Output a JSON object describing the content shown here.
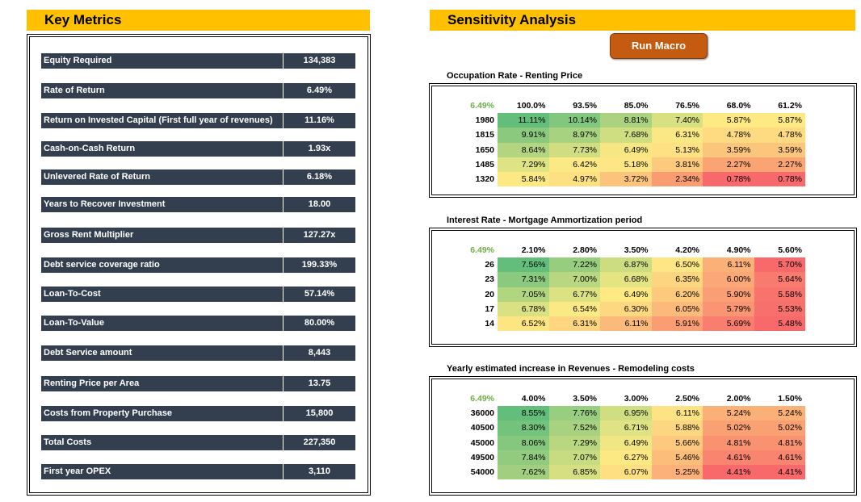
{
  "key_metrics": {
    "title": "Key Metrics",
    "rows": [
      {
        "label": "Equity Required",
        "value": "134,383"
      },
      {
        "label": "Rate of Return",
        "value": "6.49%"
      },
      {
        "label": "Return on Invested Capital (First full year of revenues)",
        "value": "11.16%"
      },
      {
        "label": "Cash-on-Cash Return",
        "value": "1.93x"
      },
      {
        "label": "Unlevered Rate of Return",
        "value": "6.18%"
      },
      {
        "label": "Years to Recover Investment",
        "value": "18.00"
      },
      {
        "label": "Gross Rent Multiplier",
        "value": "127.27x"
      },
      {
        "label": "Debt service coverage ratio",
        "value": "199.33%"
      },
      {
        "label": "Loan-To-Cost",
        "value": "57.14%"
      },
      {
        "label": "Loan-To-Value",
        "value": "80.00%"
      },
      {
        "label": "Debt Service amount",
        "value": "8,443"
      },
      {
        "label": "Renting Price per Area",
        "value": "13.75"
      },
      {
        "label": "Costs from Property Purchase",
        "value": "15,800"
      },
      {
        "label": "Total Costs",
        "value": "227,350"
      },
      {
        "label": "First year OPEX",
        "value": "3,110"
      }
    ]
  },
  "sensitivity": {
    "title": "Sensitivity Analysis",
    "run_macro_label": "Run Macro",
    "tables": [
      {
        "title": "Occupation Rate - Renting Price",
        "corner": "6.49%",
        "col_headers": [
          "100.0%",
          "93.5%",
          "85.0%",
          "76.5%",
          "68.0%",
          "61.2%"
        ],
        "rows": [
          {
            "header": "1980",
            "cells": [
              "11.11%",
              "10.14%",
              "8.81%",
              "7.40%",
              "5.87%",
              "5.87%"
            ]
          },
          {
            "header": "1815",
            "cells": [
              "9.91%",
              "8.97%",
              "7.68%",
              "6.31%",
              "4.78%",
              "4.78%"
            ]
          },
          {
            "header": "1650",
            "cells": [
              "8.64%",
              "7.73%",
              "6.49%",
              "5.13%",
              "3.59%",
              "3.59%"
            ]
          },
          {
            "header": "1485",
            "cells": [
              "7.29%",
              "6.42%",
              "5.18%",
              "3.81%",
              "2.27%",
              "2.27%"
            ]
          },
          {
            "header": "1320",
            "cells": [
              "5.84%",
              "4.97%",
              "3.72%",
              "2.34%",
              "0.78%",
              "0.78%"
            ]
          }
        ],
        "colors": [
          [
            "#63be7b",
            "#81c77d",
            "#abd37f",
            "#d7e182",
            "#fee983",
            "#fee983"
          ],
          [
            "#8ac97e",
            "#a7d27f",
            "#cfde81",
            "#f9e883",
            "#fedb81",
            "#fedb81"
          ],
          [
            "#b3d580",
            "#d0de81",
            "#f6e783",
            "#fde182",
            "#fcc57c",
            "#fcc57c"
          ],
          [
            "#dee383",
            "#fbe983",
            "#fde683",
            "#fcc97d",
            "#faa474",
            "#faa474"
          ],
          [
            "#fde983",
            "#fde082",
            "#fcc37c",
            "#fa9c72",
            "#f8696b",
            "#f8696b"
          ]
        ]
      },
      {
        "title": "Interest Rate - Mortgage Ammortization period",
        "corner": "6.49%",
        "col_headers": [
          "2.10%",
          "2.80%",
          "3.50%",
          "4.20%",
          "4.90%",
          "5.60%"
        ],
        "rows": [
          {
            "header": "26",
            "cells": [
              "7.56%",
              "7.22%",
              "6.87%",
              "6.50%",
              "6.11%",
              "5.70%"
            ]
          },
          {
            "header": "23",
            "cells": [
              "7.31%",
              "7.00%",
              "6.68%",
              "6.35%",
              "6.00%",
              "5.64%"
            ]
          },
          {
            "header": "20",
            "cells": [
              "7.05%",
              "6.77%",
              "6.49%",
              "6.20%",
              "5.90%",
              "5.58%"
            ]
          },
          {
            "header": "17",
            "cells": [
              "6.78%",
              "6.54%",
              "6.30%",
              "6.05%",
              "5.79%",
              "5.53%"
            ]
          },
          {
            "header": "14",
            "cells": [
              "6.52%",
              "6.31%",
              "6.11%",
              "5.91%",
              "5.69%",
              "5.48%"
            ]
          }
        ],
        "colors": [
          [
            "#63be7b",
            "#97cd7e",
            "#cbdc81",
            "#fde683",
            "#fbb078",
            "#f8696b"
          ],
          [
            "#8ac97e",
            "#b8d780",
            "#e5e483",
            "#fcd580",
            "#fba777",
            "#f97a6e"
          ],
          [
            "#b2d580",
            "#dbe282",
            "#fee983",
            "#fdc97d",
            "#fa9e75",
            "#f8736c"
          ],
          [
            "#dae182",
            "#fbe983",
            "#fed880",
            "#fbb97a",
            "#fa9573",
            "#f8706c"
          ],
          [
            "#fde582",
            "#fed680",
            "#fbba7a",
            "#fa9d74",
            "#f97e6f",
            "#f8696b"
          ]
        ]
      },
      {
        "title": "Yearly estimated increase in Revenues - Remodeling costs",
        "corner": "6.49%",
        "col_headers": [
          "4.00%",
          "3.50%",
          "3.00%",
          "2.50%",
          "2.00%",
          "1.50%"
        ],
        "rows": [
          {
            "header": "36000",
            "cells": [
              "8.55%",
              "7.76%",
              "6.95%",
              "6.11%",
              "5.24%",
              "5.24%"
            ]
          },
          {
            "header": "40500",
            "cells": [
              "8.30%",
              "7.52%",
              "6.71%",
              "5.88%",
              "5.02%",
              "5.02%"
            ]
          },
          {
            "header": "45000",
            "cells": [
              "8.06%",
              "7.29%",
              "6.49%",
              "5.66%",
              "4.81%",
              "4.81%"
            ]
          },
          {
            "header": "49500",
            "cells": [
              "7.84%",
              "7.07%",
              "6.27%",
              "5.46%",
              "4.61%",
              "4.61%"
            ]
          },
          {
            "header": "54000",
            "cells": [
              "7.62%",
              "6.85%",
              "6.07%",
              "5.25%",
              "4.41%",
              "4.41%"
            ]
          }
        ],
        "colors": [
          [
            "#63be7b",
            "#98ce7f",
            "#d0de82",
            "#fde383",
            "#fbb078",
            "#fbb078"
          ],
          [
            "#74c37c",
            "#a8d27f",
            "#e0e383",
            "#fdd681",
            "#faa174",
            "#faa174"
          ],
          [
            "#84c77d",
            "#b8d780",
            "#f0e683",
            "#fcc97e",
            "#f99271",
            "#f99271"
          ],
          [
            "#93cb7e",
            "#c7db81",
            "#fde983",
            "#fcbd7b",
            "#f9846f",
            "#f9846f"
          ],
          [
            "#a2cf7f",
            "#d6e082",
            "#fee082",
            "#fbb179",
            "#f8696b",
            "#f8696b"
          ]
        ]
      }
    ]
  }
}
